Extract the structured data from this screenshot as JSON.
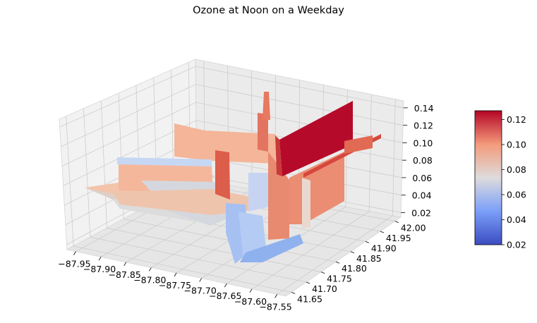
{
  "chart_data": {
    "type": "surface3d",
    "title": "Ozone at Noon on a Weekday",
    "xlabel": "",
    "ylabel": "",
    "zlabel": "",
    "x_ticks": [
      "−87.95",
      "−87.90",
      "−87.85",
      "−87.80",
      "−87.75",
      "−87.70",
      "−87.65",
      "−87.60",
      "−87.55"
    ],
    "y_ticks": [
      "41.65",
      "41.70",
      "41.75",
      "41.80",
      "41.85",
      "41.90",
      "41.95",
      "42.00"
    ],
    "z_ticks": [
      "0.02",
      "0.04",
      "0.06",
      "0.08",
      "0.10",
      "0.12",
      "0.14"
    ],
    "xlim": [
      -87.97,
      -87.53
    ],
    "ylim": [
      41.63,
      42.02
    ],
    "zlim": [
      0.02,
      0.15
    ],
    "colormap": "coolwarm",
    "colorbar": {
      "ticks": [
        "0.02",
        "0.04",
        "0.06",
        "0.08",
        "0.10",
        "0.12"
      ],
      "range": [
        0.02,
        0.127
      ]
    },
    "surface_blocks": [
      {
        "x": [
          -87.95,
          -87.78
        ],
        "y": [
          41.7,
          41.74
        ],
        "z": 0.069
      },
      {
        "x": [
          -87.94,
          -87.76
        ],
        "y": [
          41.74,
          41.8
        ],
        "z": 0.085
      },
      {
        "x": [
          -87.91,
          -87.72
        ],
        "y": [
          41.8,
          41.86
        ],
        "z": 0.064
      },
      {
        "x": [
          -87.86,
          -87.68
        ],
        "y": [
          41.86,
          41.95
        ],
        "z": 0.089
      },
      {
        "x": [
          -87.8,
          -87.76
        ],
        "y": [
          41.74,
          41.76
        ],
        "z": 0.101
      },
      {
        "x": [
          -87.74,
          -87.72
        ],
        "y": [
          41.86,
          41.9
        ],
        "z": 0.145
      },
      {
        "x": [
          -87.72,
          -87.64
        ],
        "y": [
          41.66,
          41.72
        ],
        "z": 0.045
      },
      {
        "x": [
          -87.7,
          -87.62
        ],
        "y": [
          41.7,
          41.82
        ],
        "z": 0.097
      },
      {
        "x": [
          -87.66,
          -87.58
        ],
        "y": [
          41.84,
          41.92
        ],
        "z": 0.127
      },
      {
        "x": [
          -87.62,
          -87.55
        ],
        "y": [
          41.8,
          41.92
        ],
        "z": 0.103
      }
    ]
  }
}
